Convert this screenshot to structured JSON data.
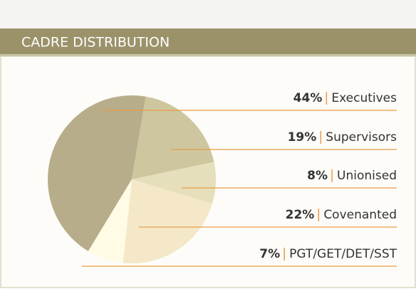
{
  "chart_data": {
    "type": "pie",
    "title": "CADRE DISTRIBUTION",
    "categories": [
      "Executives",
      "Supervisors",
      "Unionised",
      "Covenanted",
      "PGT/GET/DET/SST"
    ],
    "values": [
      44,
      19,
      8,
      22,
      7
    ],
    "value_labels": [
      "44%",
      "19%",
      "8%",
      "22%",
      "7%"
    ],
    "colors": [
      "#b7ad8a",
      "#cec69f",
      "#e5dfbb",
      "#f5e8c8",
      "#fffbe4"
    ],
    "leader_color": "#e99a45"
  }
}
